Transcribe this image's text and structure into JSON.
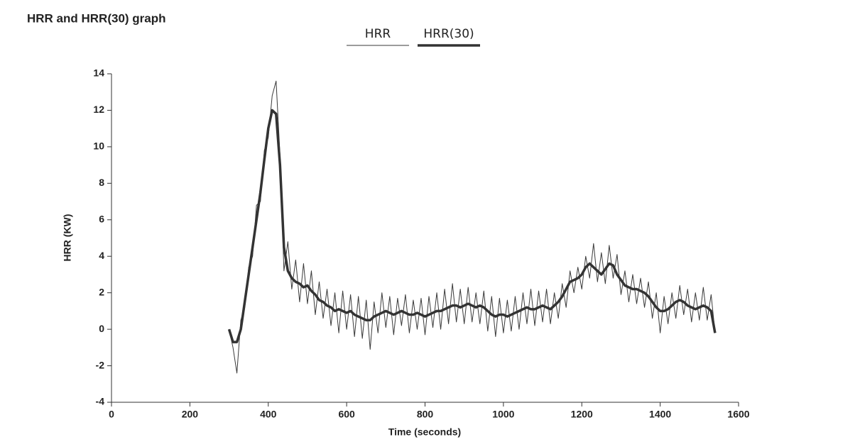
{
  "chart_data": {
    "type": "line",
    "title": "HRR and HRR(30) graph",
    "x_label": "Time (seconds)",
    "y_label": "HRR (KW)",
    "x": [
      300,
      310,
      320,
      330,
      340,
      350,
      360,
      370,
      380,
      390,
      400,
      410,
      420,
      430,
      440,
      450,
      460,
      470,
      480,
      490,
      500,
      510,
      520,
      530,
      540,
      550,
      560,
      570,
      580,
      590,
      600,
      610,
      620,
      630,
      640,
      650,
      660,
      670,
      680,
      690,
      700,
      710,
      720,
      730,
      740,
      750,
      760,
      770,
      780,
      790,
      800,
      810,
      820,
      830,
      840,
      850,
      860,
      870,
      880,
      890,
      900,
      910,
      920,
      930,
      940,
      950,
      960,
      970,
      980,
      990,
      1000,
      1010,
      1020,
      1030,
      1040,
      1050,
      1060,
      1070,
      1080,
      1090,
      1100,
      1110,
      1120,
      1130,
      1140,
      1150,
      1160,
      1170,
      1180,
      1190,
      1200,
      1210,
      1220,
      1230,
      1240,
      1250,
      1260,
      1270,
      1280,
      1290,
      1300,
      1310,
      1320,
      1330,
      1340,
      1350,
      1360,
      1370,
      1380,
      1390,
      1400,
      1410,
      1420,
      1430,
      1440,
      1450,
      1460,
      1470,
      1480,
      1490,
      1500,
      1510,
      1520,
      1530,
      1540
    ],
    "series": [
      {
        "name": "HRR",
        "color": "#3a3a3a",
        "width": 1,
        "values": [
          0,
          -1.0,
          -2.4,
          0.5,
          1.2,
          3.4,
          4.0,
          6.8,
          7.0,
          9.8,
          10.5,
          12.8,
          13.6,
          9.5,
          3.2,
          4.8,
          2.2,
          3.8,
          1.5,
          3.6,
          1.4,
          3.2,
          0.8,
          2.6,
          0.6,
          2.2,
          0.2,
          2.0,
          -0.2,
          2.1,
          0.0,
          1.9,
          -0.4,
          1.8,
          -0.5,
          1.6,
          -1.1,
          1.5,
          -0.2,
          2.0,
          0.1,
          1.8,
          -0.3,
          1.7,
          0.2,
          1.9,
          -0.2,
          1.6,
          0.0,
          1.7,
          -0.3,
          1.8,
          0.1,
          2.0,
          0.0,
          2.2,
          0.3,
          2.5,
          0.4,
          2.2,
          0.3,
          2.3,
          0.4,
          2.0,
          0.3,
          2.1,
          -0.1,
          1.8,
          -0.4,
          1.7,
          -0.2,
          1.6,
          -0.1,
          1.8,
          0.0,
          2.0,
          0.3,
          2.2,
          0.2,
          2.1,
          0.4,
          2.2,
          0.3,
          2.0,
          0.6,
          2.5,
          1.2,
          3.2,
          2.0,
          3.4,
          2.2,
          4.0,
          2.8,
          4.7,
          2.6,
          4.2,
          2.5,
          4.6,
          2.8,
          4.1,
          1.9,
          3.2,
          1.5,
          3.0,
          1.4,
          2.8,
          1.2,
          2.6,
          0.6,
          2.0,
          -0.2,
          1.8,
          0.3,
          2.0,
          0.6,
          2.4,
          0.8,
          2.2,
          0.4,
          2.0,
          0.5,
          2.3,
          0.5,
          1.9,
          -0.2
        ]
      },
      {
        "name": "HRR(30)",
        "color": "#333333",
        "width": 3.5,
        "values": [
          0,
          -0.7,
          -0.7,
          0,
          1.5,
          3,
          4.5,
          6,
          7.5,
          9.3,
          11,
          12,
          11.8,
          9,
          4.5,
          3.2,
          2.8,
          2.6,
          2.5,
          2.3,
          2.4,
          2.1,
          1.9,
          1.6,
          1.5,
          1.3,
          1.2,
          1.0,
          1.1,
          1.0,
          0.9,
          1.0,
          0.8,
          0.7,
          0.6,
          0.5,
          0.5,
          0.7,
          0.8,
          0.9,
          1.0,
          0.9,
          0.8,
          0.9,
          1.0,
          0.9,
          0.8,
          0.8,
          0.9,
          0.8,
          0.7,
          0.8,
          0.9,
          1.0,
          1.0,
          1.1,
          1.2,
          1.3,
          1.3,
          1.2,
          1.3,
          1.4,
          1.3,
          1.2,
          1.3,
          1.2,
          1.0,
          0.8,
          0.7,
          0.8,
          0.8,
          0.7,
          0.8,
          0.9,
          1.0,
          1.1,
          1.2,
          1.1,
          1.1,
          1.2,
          1.3,
          1.2,
          1.1,
          1.3,
          1.5,
          1.8,
          2.2,
          2.6,
          2.7,
          2.8,
          3.0,
          3.4,
          3.6,
          3.4,
          3.2,
          3.0,
          3.3,
          3.6,
          3.5,
          3.0,
          2.7,
          2.4,
          2.3,
          2.2,
          2.2,
          2.1,
          2.0,
          1.8,
          1.5,
          1.2,
          1.0,
          1.0,
          1.1,
          1.3,
          1.5,
          1.6,
          1.5,
          1.3,
          1.2,
          1.1,
          1.2,
          1.3,
          1.2,
          1.0,
          -0.2
        ]
      }
    ],
    "xlim": [
      0,
      1600
    ],
    "xticks": [
      0,
      200,
      400,
      600,
      800,
      1000,
      1200,
      1400,
      1600
    ],
    "ylim": [
      -4,
      14
    ],
    "yticks": [
      -4,
      -2,
      0,
      2,
      4,
      6,
      8,
      10,
      12,
      14
    ],
    "grid": false
  }
}
